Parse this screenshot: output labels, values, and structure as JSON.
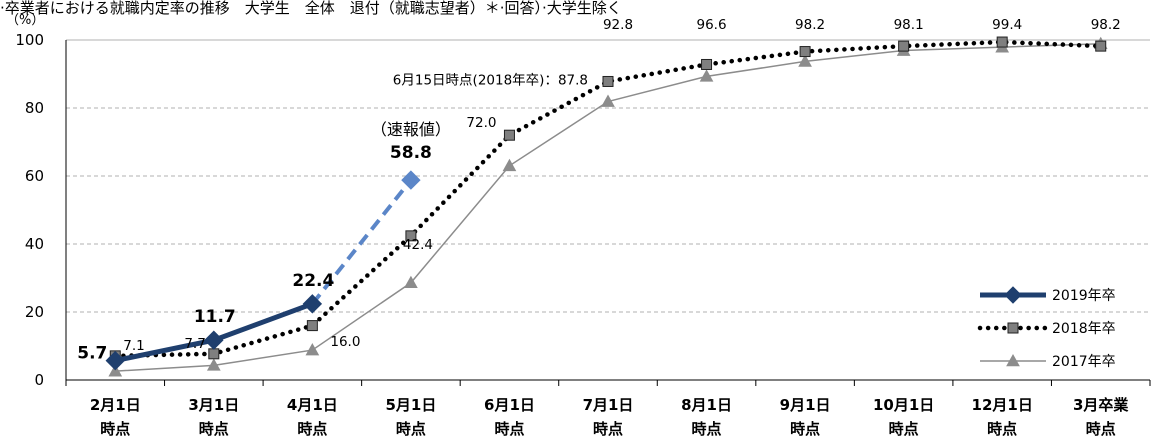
{
  "chart_data": {
    "type": "line",
    "title": "·卒業者における就職内定率の推移　大学生　全体　退付（就職志望者）＊·回答）·大学生除く",
    "ylabel": "（%）",
    "ylim": [
      0,
      100
    ],
    "yticks": [
      0,
      20,
      40,
      60,
      80,
      100
    ],
    "grid": true,
    "legend_position": "bottom-right",
    "categories": [
      [
        "2月1日",
        "時点"
      ],
      [
        "3月1日",
        "時点"
      ],
      [
        "4月1日",
        "時点"
      ],
      [
        "5月1日",
        "時点"
      ],
      [
        "6月1日",
        "時点"
      ],
      [
        "7月1日",
        "時点"
      ],
      [
        "8月1日",
        "時点"
      ],
      [
        "9月1日",
        "時点"
      ],
      [
        "10月1日",
        "時点"
      ],
      [
        "12月1日",
        "時点"
      ],
      [
        "3月卒業",
        "時点"
      ]
    ],
    "series": [
      {
        "name": "2019年卒",
        "color": "#1f3f6e",
        "style": "solid-thick",
        "marker": "diamond",
        "values": [
          5.7,
          11.7,
          22.4,
          null,
          null,
          null,
          null,
          null,
          null,
          null,
          null
        ]
      },
      {
        "name": "2019年卒（速報値）",
        "color": "#5b86c8",
        "style": "dashed",
        "marker": "diamond",
        "values": [
          null,
          null,
          22.4,
          58.8,
          null,
          null,
          null,
          null,
          null,
          null,
          null
        ]
      },
      {
        "name": "2018年卒",
        "color": "#000000",
        "style": "dotted",
        "marker": "square",
        "values": [
          7.1,
          7.7,
          16.0,
          42.4,
          72.0,
          87.8,
          92.8,
          96.6,
          98.2,
          99.4,
          98.2
        ]
      },
      {
        "name": "2017年卒",
        "color": "#8c8c8c",
        "style": "solid-thin",
        "marker": "triangle",
        "values": [
          2.6,
          4.3,
          8.8,
          28.6,
          63.0,
          81.9,
          89.3,
          93.7,
          96.9,
          97.9,
          98.9
        ]
      }
    ],
    "data_labels": {
      "s2019": [
        "5.7",
        "11.7",
        "22.4"
      ],
      "prelim_caption": "（速報値）",
      "prelim_value": "58.8",
      "s2018_small": [
        "7.1",
        "7.7",
        "16.0",
        "42.4",
        "72.0"
      ],
      "june_note": "6月15日時点(2018年卒)：87.8",
      "top_row": [
        "92.8",
        "96.6",
        "98.2",
        "98.1",
        "99.4",
        "98.2"
      ]
    }
  }
}
